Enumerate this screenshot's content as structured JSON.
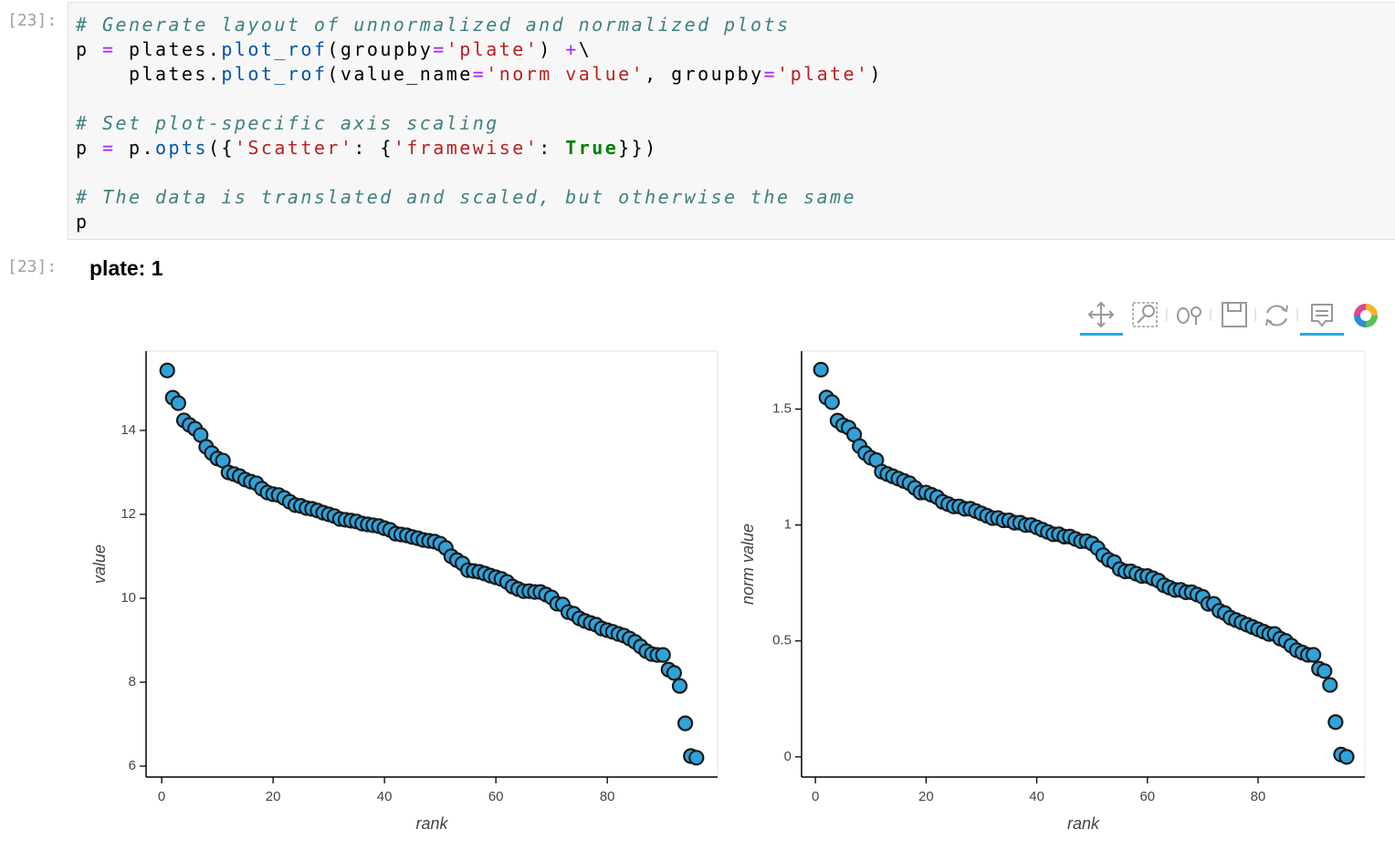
{
  "notebook": {
    "input_prompt": "[23]:",
    "code_blocks": [
      [
        "# Generate layout of unnormalized and normalized plots",
        "p = plates.plot_rof(groupby='plate') +\\",
        "    plates.plot_rof(value_name='norm value', groupby='plate')"
      ],
      [
        "# Set plot-specific axis scaling",
        "p = p.opts({'Scatter': {'framewise': True}})"
      ],
      [
        "# The data is translated and scaled, but otherwise the same",
        "p"
      ]
    ],
    "output_prompt": "[23]:",
    "output_title": "plate: 1"
  },
  "chart_data": [
    {
      "type": "scatter",
      "x_label": "rank",
      "y_label": "value",
      "color": "#30a2da",
      "x": [
        1,
        2,
        3,
        4,
        5,
        6,
        7,
        8,
        9,
        10,
        11,
        12,
        13,
        14,
        15,
        16,
        17,
        18,
        19,
        20,
        21,
        22,
        23,
        24,
        25,
        26,
        27,
        28,
        29,
        30,
        31,
        32,
        33,
        34,
        35,
        36,
        37,
        38,
        39,
        40,
        41,
        42,
        43,
        44,
        45,
        46,
        47,
        48,
        49,
        50,
        51,
        52,
        53,
        54,
        55,
        56,
        57,
        58,
        59,
        60,
        61,
        62,
        63,
        64,
        65,
        66,
        67,
        68,
        69,
        70,
        71,
        72,
        73,
        74,
        75,
        76,
        77,
        78,
        79,
        80,
        81,
        82,
        83,
        84,
        85,
        86,
        87,
        88,
        89,
        90,
        91,
        92,
        93,
        94,
        95,
        96
      ],
      "values": [
        15.43,
        14.78,
        14.65,
        14.24,
        14.13,
        14.04,
        13.89,
        13.61,
        13.46,
        13.33,
        13.28,
        13.0,
        12.96,
        12.91,
        12.83,
        12.78,
        12.74,
        12.61,
        12.52,
        12.48,
        12.46,
        12.39,
        12.3,
        12.22,
        12.2,
        12.15,
        12.13,
        12.09,
        12.04,
        12.0,
        11.96,
        11.89,
        11.87,
        11.85,
        11.83,
        11.78,
        11.76,
        11.74,
        11.72,
        11.67,
        11.63,
        11.54,
        11.52,
        11.5,
        11.46,
        11.43,
        11.39,
        11.37,
        11.35,
        11.3,
        11.2,
        11.0,
        10.91,
        10.83,
        10.67,
        10.65,
        10.63,
        10.59,
        10.54,
        10.5,
        10.46,
        10.39,
        10.28,
        10.22,
        10.17,
        10.17,
        10.15,
        10.15,
        10.09,
        10.02,
        9.87,
        9.85,
        9.67,
        9.63,
        9.52,
        9.46,
        9.41,
        9.37,
        9.28,
        9.24,
        9.2,
        9.15,
        9.11,
        9.04,
        8.96,
        8.85,
        8.74,
        8.67,
        8.65,
        8.65,
        8.3,
        8.22,
        7.91,
        7.02,
        6.24,
        6.2
      ],
      "xlim": [
        -2.8,
        99.8
      ],
      "ylim": [
        5.74,
        15.89
      ],
      "xticks": [
        0,
        20,
        40,
        60,
        80
      ],
      "yticks": [
        6,
        8,
        10,
        12,
        14
      ]
    },
    {
      "type": "scatter",
      "x_label": "rank",
      "y_label": "norm value",
      "color": "#30a2da",
      "x": [
        1,
        2,
        3,
        4,
        5,
        6,
        7,
        8,
        9,
        10,
        11,
        12,
        13,
        14,
        15,
        16,
        17,
        18,
        19,
        20,
        21,
        22,
        23,
        24,
        25,
        26,
        27,
        28,
        29,
        30,
        31,
        32,
        33,
        34,
        35,
        36,
        37,
        38,
        39,
        40,
        41,
        42,
        43,
        44,
        45,
        46,
        47,
        48,
        49,
        50,
        51,
        52,
        53,
        54,
        55,
        56,
        57,
        58,
        59,
        60,
        61,
        62,
        63,
        64,
        65,
        66,
        67,
        68,
        69,
        70,
        71,
        72,
        73,
        74,
        75,
        76,
        77,
        78,
        79,
        80,
        81,
        82,
        83,
        84,
        85,
        86,
        87,
        88,
        89,
        90,
        91,
        92,
        93,
        94,
        95,
        96
      ],
      "values": [
        1.67,
        1.55,
        1.53,
        1.45,
        1.43,
        1.42,
        1.39,
        1.34,
        1.31,
        1.29,
        1.28,
        1.23,
        1.22,
        1.21,
        1.2,
        1.19,
        1.18,
        1.16,
        1.14,
        1.14,
        1.13,
        1.12,
        1.1,
        1.09,
        1.08,
        1.08,
        1.07,
        1.07,
        1.06,
        1.05,
        1.04,
        1.03,
        1.03,
        1.02,
        1.02,
        1.01,
        1.01,
        1.0,
        1.0,
        0.99,
        0.98,
        0.97,
        0.96,
        0.96,
        0.95,
        0.95,
        0.94,
        0.93,
        0.93,
        0.92,
        0.9,
        0.87,
        0.85,
        0.84,
        0.81,
        0.8,
        0.8,
        0.79,
        0.78,
        0.78,
        0.77,
        0.76,
        0.74,
        0.73,
        0.72,
        0.72,
        0.71,
        0.71,
        0.7,
        0.69,
        0.66,
        0.66,
        0.63,
        0.62,
        0.6,
        0.59,
        0.58,
        0.57,
        0.56,
        0.55,
        0.54,
        0.53,
        0.53,
        0.51,
        0.5,
        0.48,
        0.46,
        0.45,
        0.44,
        0.44,
        0.38,
        0.37,
        0.31,
        0.15,
        0.01,
        0
      ],
      "xlim": [
        -2.5,
        99.3
      ],
      "ylim": [
        -0.087,
        1.75
      ],
      "xticks": [
        0,
        20,
        40,
        60,
        80
      ],
      "yticks": [
        0,
        0.5,
        1,
        1.5
      ]
    }
  ]
}
